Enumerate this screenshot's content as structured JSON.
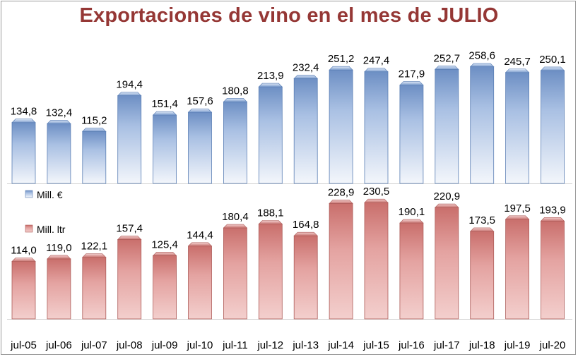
{
  "chart_data": {
    "type": "bar",
    "title": "Exportaciones de vino en el mes de JULIO",
    "categories": [
      "jul-05",
      "jul-06",
      "jul-07",
      "jul-08",
      "jul-09",
      "jul-10",
      "jul-11",
      "jul-12",
      "jul-13",
      "jul-14",
      "jul-15",
      "jul-16",
      "jul-17",
      "jul-18",
      "jul-19",
      "jul-20"
    ],
    "series": [
      {
        "name": "Mill. €",
        "values": [
          134.8,
          132.4,
          115.2,
          194.4,
          151.4,
          157.6,
          180.8,
          213.9,
          232.4,
          251.2,
          247.4,
          217.9,
          252.7,
          258.6,
          245.7,
          250.1
        ],
        "labels": [
          "134,8",
          "132,4",
          "115,2",
          "194,4",
          "151,4",
          "157,6",
          "180,8",
          "213,9",
          "232,4",
          "251,2",
          "247,4",
          "217,9",
          "252,7",
          "258,6",
          "245,7",
          "250,1"
        ],
        "color": "#95b3d7"
      },
      {
        "name": "Mill. ltr",
        "values": [
          114.0,
          119.0,
          122.1,
          157.4,
          125.4,
          144.4,
          180.4,
          188.1,
          164.8,
          228.9,
          230.5,
          190.1,
          220.9,
          173.5,
          197.5,
          193.9
        ],
        "labels": [
          "114,0",
          "119,0",
          "122,1",
          "157,4",
          "125,4",
          "144,4",
          "180,4",
          "188,1",
          "164,8",
          "228,9",
          "230,5",
          "190,1",
          "220,9",
          "173,5",
          "197,5",
          "193,9"
        ],
        "color": "#e6a6a6"
      }
    ],
    "legend_placement": "left, between panels",
    "grid": false
  }
}
